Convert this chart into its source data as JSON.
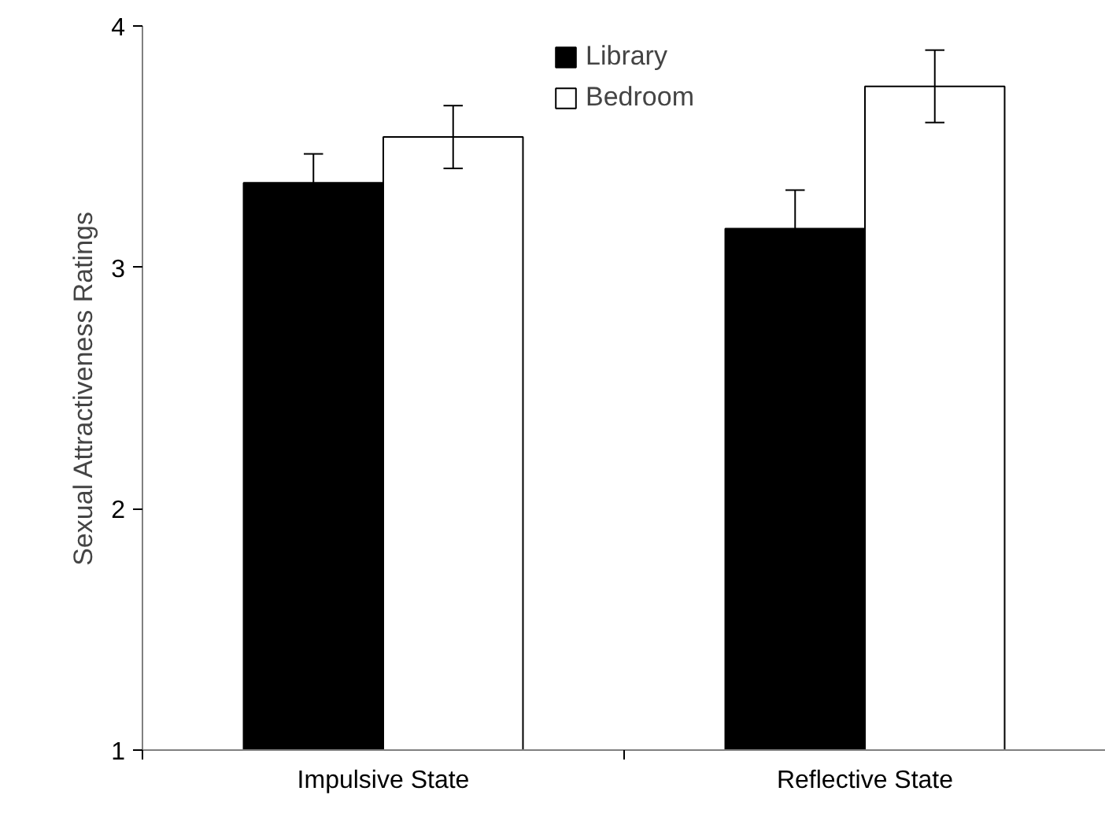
{
  "chart_data": {
    "type": "bar",
    "ylabel": "Sexual Attractiveness Ratings",
    "categories": [
      "Impulsive State",
      "Reflective State"
    ],
    "series": [
      {
        "name": "Library",
        "color": "#000000",
        "values": [
          3.35,
          3.16
        ],
        "errors": [
          0.12,
          0.16
        ]
      },
      {
        "name": "Bedroom",
        "color": "#ffffff",
        "values": [
          3.54,
          3.75
        ],
        "errors": [
          0.13,
          0.15
        ]
      }
    ],
    "ylim": [
      1,
      4
    ],
    "yticks": [
      1,
      2,
      3,
      4
    ],
    "grid": false,
    "legend": "top"
  }
}
